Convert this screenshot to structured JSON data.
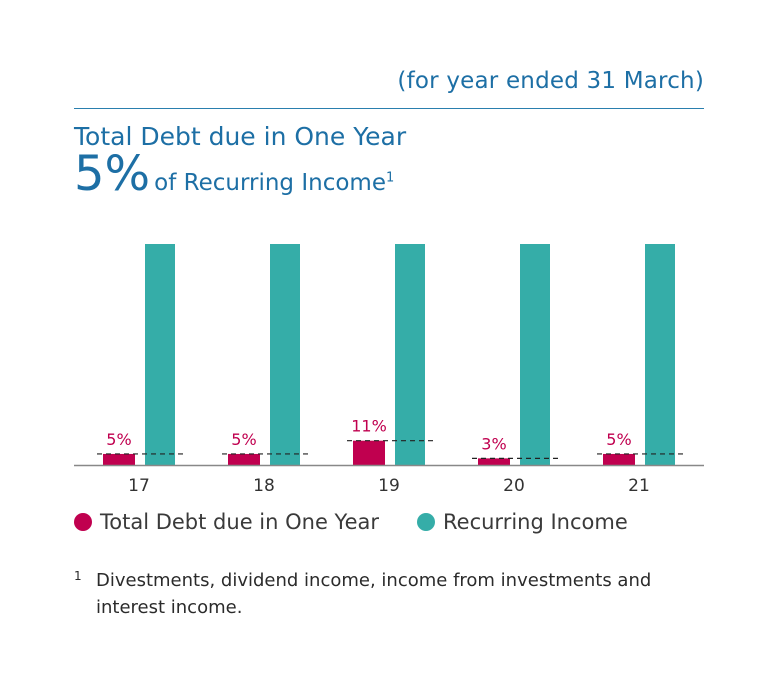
{
  "header": {
    "subtitle": "(for year ended 31 March)",
    "title": "Total Debt due in One Year",
    "highlight_value": "5%",
    "highlight_text": "of Recurring Income",
    "highlight_footnote_ref": "1"
  },
  "legend": {
    "debt_label": "Total Debt due in One Year",
    "income_label": "Recurring Income"
  },
  "footnote": {
    "marker": "1",
    "text": "Divestments, dividend income, income from investments and interest income."
  },
  "colors": {
    "debt": "#c0004f",
    "income": "#35ada8",
    "title": "#1d6fa5",
    "axis": "#888888"
  },
  "chart_data": {
    "type": "bar",
    "categories": [
      "17",
      "18",
      "19",
      "20",
      "21"
    ],
    "series": [
      {
        "name": "Total Debt due in One Year",
        "values": [
          5,
          5,
          11,
          3,
          5
        ]
      },
      {
        "name": "Recurring Income",
        "values": [
          100,
          100,
          100,
          100,
          100
        ]
      }
    ],
    "data_labels": [
      "5%",
      "5%",
      "11%",
      "3%",
      "5%"
    ],
    "ylim": [
      0,
      100
    ],
    "grid": false,
    "legend_position": "bottom"
  }
}
